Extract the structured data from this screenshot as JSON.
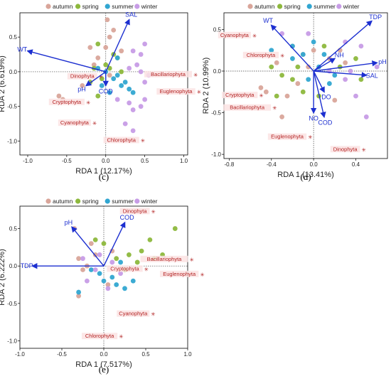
{
  "colors": {
    "autumn": "#d9a59a",
    "spring": "#8db83d",
    "summer": "#31a6d1",
    "winter": "#c79ce6",
    "arrow": "#1c2fd0",
    "species": "#b22222",
    "label_bg": "#fbe3e3"
  },
  "legend": [
    "autumn",
    "spring",
    "summer",
    "winter"
  ],
  "chart_data": [
    {
      "type": "scatter",
      "panel": "(c)",
      "xlabel": "RDA 1 (12.17%)",
      "ylabel": "RDA 2 (6.619%)",
      "xlim": [
        -1.1,
        1.05
      ],
      "ylim": [
        -1.2,
        0.85
      ],
      "xticks": [
        -1.0,
        -0.5,
        0.0,
        0.5,
        1.0
      ],
      "yticks": [
        -1.0,
        -0.5,
        0.0,
        0.5
      ],
      "xtick_labels": [
        "-1.0",
        "-0.5",
        "0.0",
        "0.5",
        "1.0"
      ],
      "ytick_labels": [
        "-1.0",
        "-0.5",
        "0.0",
        "0.5"
      ],
      "vectors": [
        {
          "name": "WT",
          "x": -1.0,
          "y": 0.3
        },
        {
          "name": "SAL",
          "x": 0.3,
          "y": 0.75
        },
        {
          "name": "pH",
          "x": -0.25,
          "y": -0.2
        },
        {
          "name": "COD",
          "x": 0.0,
          "y": -0.2
        }
      ],
      "species": [
        {
          "name": "Dinophyta",
          "x": -0.3,
          "y": -0.08
        },
        {
          "name": "Bacillariophyta",
          "x": 0.8,
          "y": -0.05
        },
        {
          "name": "Euglenophyta",
          "x": 0.9,
          "y": -0.3
        },
        {
          "name": "Cryptophyta",
          "x": -0.5,
          "y": -0.45
        },
        {
          "name": "Cyanophyta",
          "x": -0.4,
          "y": -0.75
        },
        {
          "name": "Chlorophyta",
          "x": 0.2,
          "y": -1.0
        }
      ],
      "points": {
        "autumn": [
          [
            -0.6,
            -0.35
          ],
          [
            -0.55,
            -0.4
          ],
          [
            -0.3,
            -0.2
          ],
          [
            -0.1,
            0.2
          ],
          [
            0.0,
            0.35
          ],
          [
            0.05,
            0.5
          ],
          [
            0.1,
            0.6
          ],
          [
            -0.15,
            0.1
          ],
          [
            0.2,
            0.3
          ],
          [
            0.05,
            -0.05
          ],
          [
            -0.2,
            0.35
          ],
          [
            0.02,
            0.75
          ]
        ],
        "spring": [
          [
            -0.15,
            0.05
          ],
          [
            0.0,
            0.1
          ],
          [
            0.1,
            0.25
          ],
          [
            0.15,
            0.2
          ],
          [
            -0.05,
            -0.1
          ],
          [
            -0.1,
            -0.35
          ],
          [
            -0.1,
            0.4
          ],
          [
            0.05,
            0.05
          ],
          [
            0.2,
            0.0
          ],
          [
            -0.2,
            -0.15
          ]
        ],
        "summer": [
          [
            0.0,
            0.0
          ],
          [
            0.1,
            -0.1
          ],
          [
            0.2,
            -0.2
          ],
          [
            0.3,
            -0.25
          ],
          [
            0.25,
            -0.15
          ],
          [
            0.15,
            -0.05
          ],
          [
            -0.05,
            -0.2
          ],
          [
            0.05,
            -0.3
          ],
          [
            0.35,
            -0.3
          ],
          [
            -0.1,
            0.05
          ],
          [
            0.15,
            0.2
          ]
        ],
        "winter": [
          [
            0.3,
            0.05
          ],
          [
            0.4,
            0.1
          ],
          [
            0.45,
            0.0
          ],
          [
            0.5,
            -0.15
          ],
          [
            0.5,
            -0.4
          ],
          [
            0.45,
            -0.5
          ],
          [
            0.35,
            -0.55
          ],
          [
            0.3,
            -0.45
          ],
          [
            0.55,
            -0.05
          ],
          [
            0.35,
            0.3
          ],
          [
            0.45,
            0.25
          ],
          [
            0.25,
            -0.75
          ],
          [
            0.35,
            -0.85
          ],
          [
            0.15,
            -0.4
          ],
          [
            0.5,
            0.4
          ]
        ]
      }
    },
    {
      "type": "scatter",
      "panel": "(d)",
      "xlabel": "RDA 1 (13.41%)",
      "ylabel": "RDA 2 (10.99%)",
      "xlim": [
        -0.85,
        0.7
      ],
      "ylim": [
        -1.05,
        0.7
      ],
      "xticks": [
        -0.8,
        -0.4,
        0.0,
        0.4
      ],
      "yticks": [
        -1.0,
        -0.5,
        0.0,
        0.5
      ],
      "xtick_labels": [
        "-0.8",
        "-0.4",
        "0.0",
        "0.4"
      ],
      "ytick_labels": [
        "-1.0",
        "-0.5",
        "0.0",
        "0.5"
      ],
      "vectors": [
        {
          "name": "WT",
          "x": -0.4,
          "y": 0.55
        },
        {
          "name": "TDP",
          "x": 0.55,
          "y": 0.6
        },
        {
          "name": "NH",
          "x": 0.2,
          "y": 0.15
        },
        {
          "name": "pH",
          "x": 0.6,
          "y": 0.1
        },
        {
          "name": "SAL",
          "x": 0.5,
          "y": -0.05
        },
        {
          "name": "DO",
          "x": 0.1,
          "y": -0.25
        },
        {
          "name": "NO",
          "x": 0.0,
          "y": -0.5
        },
        {
          "name": "COD",
          "x": 0.1,
          "y": -0.55
        }
      ],
      "species": [
        {
          "name": "Cyanophyta",
          "x": -0.75,
          "y": 0.42
        },
        {
          "name": "Chlorophyta",
          "x": -0.5,
          "y": 0.18
        },
        {
          "name": "Cryptophyta",
          "x": -0.7,
          "y": -0.3
        },
        {
          "name": "Bacillariophyta",
          "x": -0.63,
          "y": -0.45
        },
        {
          "name": "Euglenophyta",
          "x": -0.25,
          "y": -0.8
        },
        {
          "name": "Dinophyta",
          "x": 0.3,
          "y": -0.95
        }
      ],
      "points": {
        "autumn": [
          [
            -0.2,
            0.3
          ],
          [
            -0.1,
            0.2
          ],
          [
            0.0,
            0.25
          ],
          [
            -0.35,
            0.1
          ],
          [
            -0.5,
            -0.2
          ],
          [
            -0.45,
            -0.25
          ],
          [
            -0.25,
            -0.3
          ],
          [
            -0.05,
            0.05
          ],
          [
            0.15,
            0.15
          ],
          [
            0.25,
            0.25
          ],
          [
            -0.15,
            -0.15
          ],
          [
            0.3,
            0.1
          ],
          [
            -0.3,
            -0.55
          ],
          [
            0.2,
            -0.35
          ]
        ],
        "spring": [
          [
            -0.4,
            0.05
          ],
          [
            -0.3,
            -0.05
          ],
          [
            -0.2,
            -0.1
          ],
          [
            -0.1,
            -0.25
          ],
          [
            0.05,
            -0.3
          ],
          [
            -0.35,
            -0.3
          ],
          [
            -0.15,
            0.05
          ],
          [
            0.25,
            0.05
          ],
          [
            0.4,
            0.15
          ],
          [
            0.45,
            -0.1
          ],
          [
            0.1,
            0.3
          ]
        ],
        "summer": [
          [
            -0.1,
            0.2
          ],
          [
            0.0,
            0.35
          ],
          [
            0.1,
            0.2
          ],
          [
            -0.2,
            0.15
          ],
          [
            0.05,
            0.05
          ],
          [
            0.2,
            -0.05
          ],
          [
            0.15,
            -0.15
          ],
          [
            -0.05,
            -0.1
          ],
          [
            -0.2,
            0.3
          ],
          [
            -0.4,
            0.25
          ]
        ],
        "winter": [
          [
            0.3,
            -0.1
          ],
          [
            0.35,
            0.0
          ],
          [
            0.4,
            -0.3
          ],
          [
            0.5,
            -0.55
          ],
          [
            0.15,
            0.0
          ],
          [
            -0.05,
            0.45
          ],
          [
            0.3,
            0.35
          ],
          [
            0.45,
            0.3
          ],
          [
            -0.3,
            0.45
          ],
          [
            0.6,
            0.05
          ]
        ]
      }
    },
    {
      "type": "scatter",
      "panel": "(e)",
      "xlabel": "RDA 1 (7.517%)",
      "ylabel": "RDA 2 (6.222%)",
      "xlim": [
        -1.0,
        1.0
      ],
      "ylim": [
        -1.1,
        0.8
      ],
      "xticks": [
        -1.0,
        -0.5,
        0.0,
        0.5,
        1.0
      ],
      "yticks": [
        -1.0,
        -0.5,
        0.0,
        0.5
      ],
      "xtick_labels": [
        "-1.0",
        "-0.5",
        "0.0",
        "0.5",
        "1.0"
      ],
      "ytick_labels": [
        "-1.0",
        "-0.5",
        "0.0",
        "0.5"
      ],
      "vectors": [
        {
          "name": "pH",
          "x": -0.38,
          "y": 0.52
        },
        {
          "name": "COD",
          "x": 0.25,
          "y": 0.58
        },
        {
          "name": "TDP",
          "x": -0.85,
          "y": 0.0
        }
      ],
      "species": [
        {
          "name": "Dinophyta",
          "x": 0.37,
          "y": 0.72
        },
        {
          "name": "Bacillariophyta",
          "x": 0.72,
          "y": 0.08
        },
        {
          "name": "Cryptophyta",
          "x": 0.25,
          "y": -0.05
        },
        {
          "name": "Euglenophyta",
          "x": 0.9,
          "y": -0.12
        },
        {
          "name": "Cyanophyta",
          "x": 0.35,
          "y": -0.65
        },
        {
          "name": "Chlorophyta",
          "x": -0.05,
          "y": -0.95
        }
      ],
      "points": {
        "autumn": [
          [
            -0.3,
            0.1
          ],
          [
            -0.2,
            0.0
          ],
          [
            -0.1,
            0.15
          ],
          [
            -0.25,
            -0.05
          ],
          [
            -0.15,
            0.3
          ],
          [
            -0.35,
            0.5
          ],
          [
            0.1,
            0.2
          ],
          [
            -0.3,
            -0.4
          ],
          [
            0.05,
            -0.25
          ]
        ],
        "spring": [
          [
            0.0,
            0.3
          ],
          [
            0.15,
            0.1
          ],
          [
            0.3,
            0.15
          ],
          [
            0.45,
            0.2
          ],
          [
            0.6,
            0.1
          ],
          [
            0.7,
            0.15
          ],
          [
            0.55,
            0.35
          ],
          [
            0.85,
            0.5
          ],
          [
            -0.1,
            0.35
          ],
          [
            0.25,
            -0.05
          ],
          [
            0.4,
            0.05
          ]
        ],
        "summer": [
          [
            0.0,
            -0.2
          ],
          [
            0.1,
            -0.15
          ],
          [
            0.15,
            -0.25
          ],
          [
            -0.05,
            -0.1
          ],
          [
            0.25,
            -0.3
          ],
          [
            0.35,
            -0.2
          ],
          [
            -0.3,
            -0.35
          ],
          [
            0.2,
            0.05
          ],
          [
            -0.15,
            -0.05
          ]
        ],
        "winter": [
          [
            -0.1,
            -0.05
          ],
          [
            0.05,
            -0.3
          ],
          [
            -0.2,
            -0.2
          ],
          [
            0.1,
            0.05
          ],
          [
            -0.05,
            0.15
          ],
          [
            0.2,
            -0.1
          ],
          [
            -0.25,
            0.1
          ]
        ]
      }
    }
  ]
}
